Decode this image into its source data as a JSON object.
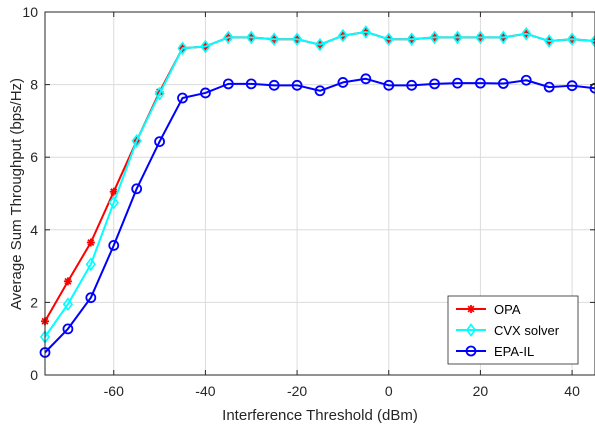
{
  "chart_data": {
    "type": "line",
    "title": "",
    "xlabel": "Interference Threshold (dBm)",
    "ylabel": "Average Sum Throughput (bps/Hz)",
    "xlim": [
      -75,
      45
    ],
    "ylim": [
      0,
      10
    ],
    "xticks": [
      -60,
      -40,
      -20,
      0,
      20,
      40
    ],
    "yticks": [
      0,
      2,
      4,
      6,
      8,
      10
    ],
    "grid": true,
    "legend_position": "bottom-right",
    "x": [
      -75,
      -70,
      -65,
      -60,
      -55,
      -50,
      -45,
      -40,
      -35,
      -30,
      -25,
      -20,
      -15,
      -10,
      -5,
      0,
      5,
      10,
      15,
      20,
      25,
      30,
      35,
      40,
      45
    ],
    "series": [
      {
        "name": "OPA",
        "color": "#ff0000",
        "marker": "star",
        "values": [
          1.48,
          2.58,
          3.65,
          5.05,
          6.45,
          7.8,
          9.0,
          9.05,
          9.3,
          9.3,
          9.25,
          9.25,
          9.1,
          9.35,
          9.45,
          9.25,
          9.25,
          9.3,
          9.3,
          9.3,
          9.3,
          9.4,
          9.2,
          9.25,
          9.2
        ]
      },
      {
        "name": "CVX solver",
        "color": "#00ffff",
        "marker": "diamond",
        "values": [
          1.05,
          1.95,
          3.05,
          4.75,
          6.45,
          7.75,
          9.0,
          9.05,
          9.3,
          9.3,
          9.25,
          9.25,
          9.1,
          9.35,
          9.45,
          9.25,
          9.25,
          9.3,
          9.3,
          9.3,
          9.3,
          9.4,
          9.2,
          9.25,
          9.2
        ]
      },
      {
        "name": "EPA-IL",
        "color": "#0000ff",
        "marker": "circle",
        "values": [
          0.62,
          1.27,
          2.13,
          3.57,
          5.13,
          6.43,
          7.63,
          7.77,
          8.02,
          8.02,
          7.98,
          7.98,
          7.83,
          8.06,
          8.16,
          7.98,
          7.98,
          8.02,
          8.04,
          8.04,
          8.03,
          8.12,
          7.93,
          7.97,
          7.9
        ]
      }
    ]
  }
}
